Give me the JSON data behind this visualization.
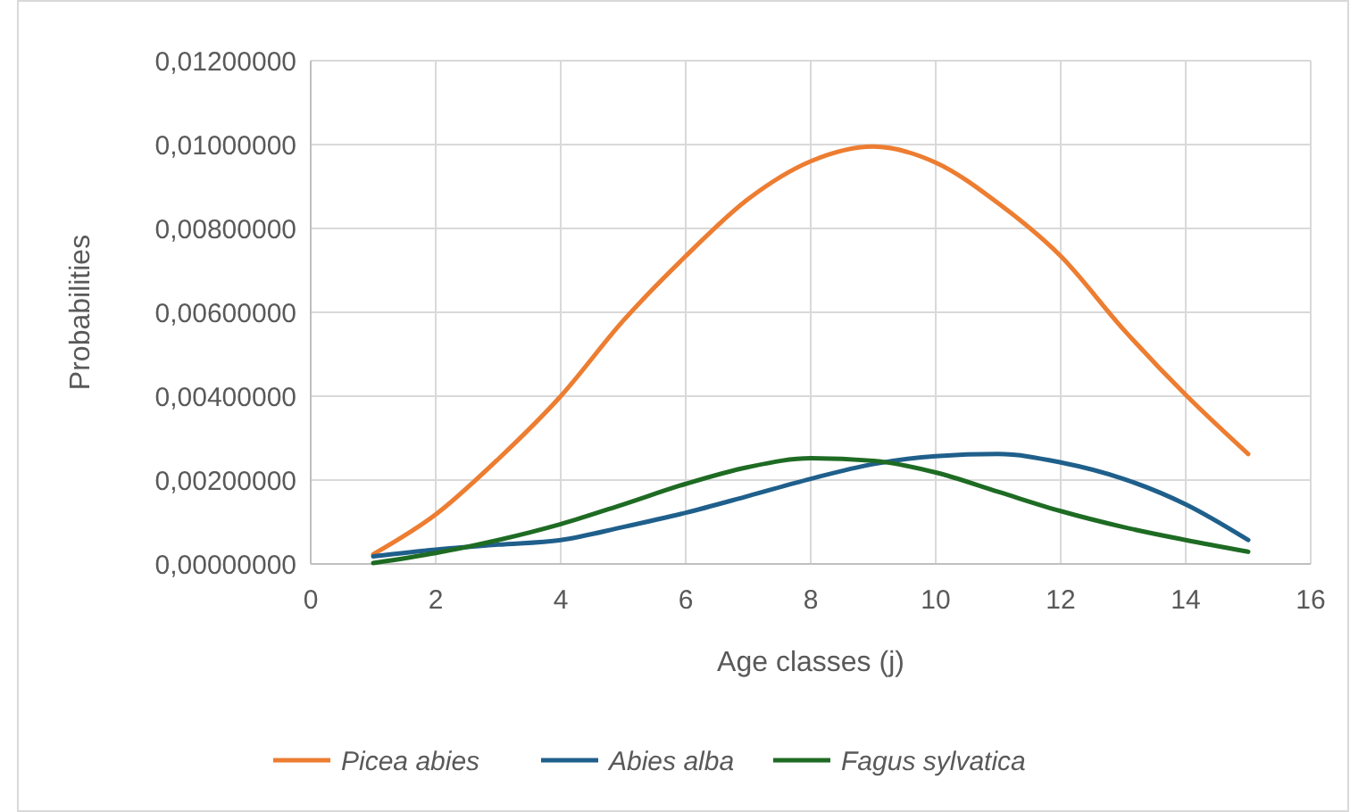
{
  "chart_data": {
    "type": "line",
    "xlabel": "Age classes (j)",
    "ylabel": "Probabilities",
    "x": [
      1,
      2,
      3,
      4,
      5,
      6,
      7,
      8,
      9,
      10,
      11,
      12,
      13,
      14,
      15
    ],
    "series": [
      {
        "name": "Picea abies",
        "color": "#ed7d31",
        "values": [
          0.00023,
          0.00118,
          0.0025,
          0.004,
          0.0058,
          0.00734,
          0.0087,
          0.0096,
          0.00995,
          0.00957,
          0.0086,
          0.00734,
          0.0056,
          0.00403,
          0.00262
        ]
      },
      {
        "name": "Abies alba",
        "color": "#1f5f8b",
        "values": [
          0.00018,
          0.00034,
          0.00046,
          0.00057,
          0.00088,
          0.00122,
          0.00162,
          0.00203,
          0.00238,
          0.00257,
          0.00262,
          0.00242,
          0.00203,
          0.00142,
          0.00057
        ]
      },
      {
        "name": "Fagus sylvatica",
        "color": "#1e6b23",
        "values": [
          2e-05,
          0.00026,
          0.00057,
          0.00095,
          0.00142,
          0.00191,
          0.00231,
          0.00252,
          0.00246,
          0.00218,
          0.00172,
          0.00126,
          0.00088,
          0.00057,
          0.00029
        ]
      }
    ],
    "xlim": [
      0,
      16
    ],
    "xticks": [
      0,
      2,
      4,
      6,
      8,
      10,
      12,
      14,
      16
    ],
    "ylim": [
      0,
      0.012
    ],
    "yticks": [
      {
        "value": 0,
        "label": "0,00000000"
      },
      {
        "value": 0.002,
        "label": "0,00200000"
      },
      {
        "value": 0.004,
        "label": "0,00400000"
      },
      {
        "value": 0.006,
        "label": "0,00600000"
      },
      {
        "value": 0.008,
        "label": "0,00800000"
      },
      {
        "value": 0.01,
        "label": "0,01000000"
      },
      {
        "value": 0.012,
        "label": "0,01200000"
      }
    ],
    "grid": true,
    "legend": "bottom",
    "marker": "none",
    "line_style": "solid"
  }
}
